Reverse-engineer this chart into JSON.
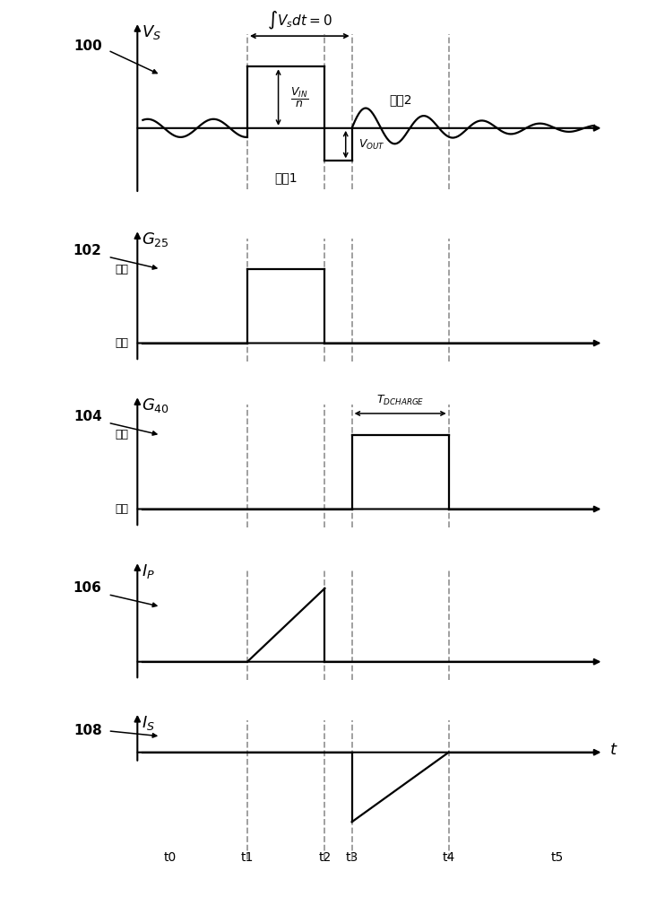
{
  "fig_width": 7.32,
  "fig_height": 10.0,
  "dpi": 100,
  "bg_color": "#ffffff",
  "t0": 0.0,
  "t1": 1.0,
  "t2": 2.0,
  "t3": 2.35,
  "t4": 3.6,
  "t5": 5.0,
  "x_min": -0.5,
  "x_max": 5.6,
  "on_label": "接通",
  "off_label": "断开",
  "section1_label": "部分1",
  "section2_label": "部分2",
  "panel_ids": [
    "100",
    "102",
    "104",
    "106",
    "108"
  ]
}
